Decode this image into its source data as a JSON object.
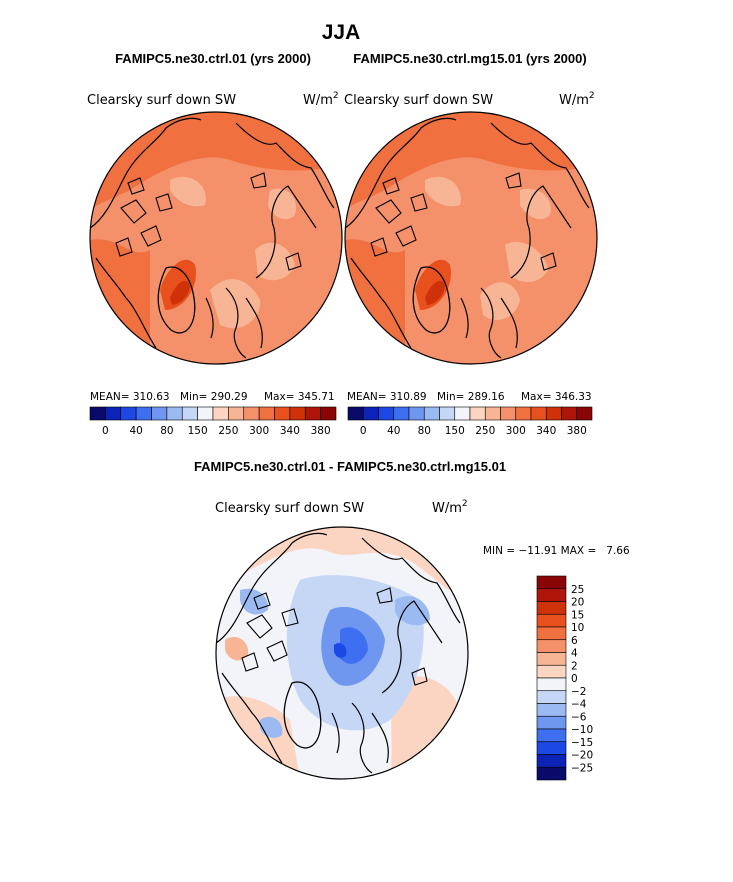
{
  "title": "JJA",
  "top_panels": [
    {
      "case_title": "FAMIPC5.ne30.ctrl.01 (yrs 2000)",
      "var_label": "Clearsky surf down SW",
      "units_base": "W/m",
      "units_exp": "2",
      "stats": {
        "mean_label": "MEAN= 310.63",
        "min_label": "Min= 290.29",
        "max_label": "Max= 345.71"
      }
    },
    {
      "case_title": "FAMIPC5.ne30.ctrl.mg15.01 (yrs 2000)",
      "var_label": "Clearsky surf down SW",
      "units_base": "W/m",
      "units_exp": "2",
      "stats": {
        "mean_label": "MEAN= 310.89",
        "min_label": "Min= 289.16",
        "max_label": "Max= 346.33"
      }
    }
  ],
  "diff_panel": {
    "title": "FAMIPC5.ne30.ctrl.01 - FAMIPC5.ne30.ctrl.mg15.01",
    "var_label": "Clearsky surf down SW",
    "units_base": "W/m",
    "units_exp": "2",
    "minmax_label": "MIN = −11.91 MAX =   7.66"
  },
  "chart_data": [
    {
      "type": "heatmap",
      "projection": "north-polar-stereographic",
      "title": "FAMIPC5.ne30.ctrl.01 (yrs 2000)",
      "variable": "Clearsky surf down SW",
      "units": "W/m2",
      "mean": 310.63,
      "min": 290.29,
      "max": 345.71,
      "colorbar_colors": [
        "#0a0a6a",
        "#0d23b8",
        "#1c49e6",
        "#3e6ff0",
        "#6f97f0",
        "#9bbaf2",
        "#c5d7f5",
        "#f3f4f9",
        "#fbd5c2",
        "#f8b595",
        "#f5916a",
        "#f07040",
        "#e8501d",
        "#cf3108",
        "#b0150a",
        "#8a0606"
      ],
      "colorbar_ticks": [
        "0",
        "40",
        "80",
        "150",
        "250",
        "300",
        "340",
        "380"
      ]
    },
    {
      "type": "heatmap",
      "projection": "north-polar-stereographic",
      "title": "FAMIPC5.ne30.ctrl.mg15.01 (yrs 2000)",
      "variable": "Clearsky surf down SW",
      "units": "W/m2",
      "mean": 310.89,
      "min": 289.16,
      "max": 346.33,
      "colorbar_colors": [
        "#0a0a6a",
        "#0d23b8",
        "#1c49e6",
        "#3e6ff0",
        "#6f97f0",
        "#9bbaf2",
        "#c5d7f5",
        "#f3f4f9",
        "#fbd5c2",
        "#f8b595",
        "#f5916a",
        "#f07040",
        "#e8501d",
        "#cf3108",
        "#b0150a",
        "#8a0606"
      ],
      "colorbar_ticks": [
        "0",
        "40",
        "80",
        "150",
        "250",
        "300",
        "340",
        "380"
      ]
    },
    {
      "type": "heatmap",
      "projection": "north-polar-stereographic",
      "title": "FAMIPC5.ne30.ctrl.01 - FAMIPC5.ne30.ctrl.mg15.01",
      "variable": "Clearsky surf down SW",
      "units": "W/m2",
      "min": -11.91,
      "max": 7.66,
      "colorbar_colors": [
        "#8a0606",
        "#b0150a",
        "#cf3108",
        "#e8501d",
        "#f07040",
        "#f5916a",
        "#f8b595",
        "#fbd5c2",
        "#f3f4f9",
        "#c5d7f5",
        "#9bbaf2",
        "#6f97f0",
        "#3e6ff0",
        "#1c49e6",
        "#0d23b8",
        "#0a0a6a"
      ],
      "colorbar_ticks": [
        "25",
        "20",
        "15",
        "10",
        "6",
        "4",
        "2",
        "0",
        "−2",
        "−4",
        "−6",
        "−10",
        "−15",
        "−20",
        "−25"
      ]
    }
  ]
}
